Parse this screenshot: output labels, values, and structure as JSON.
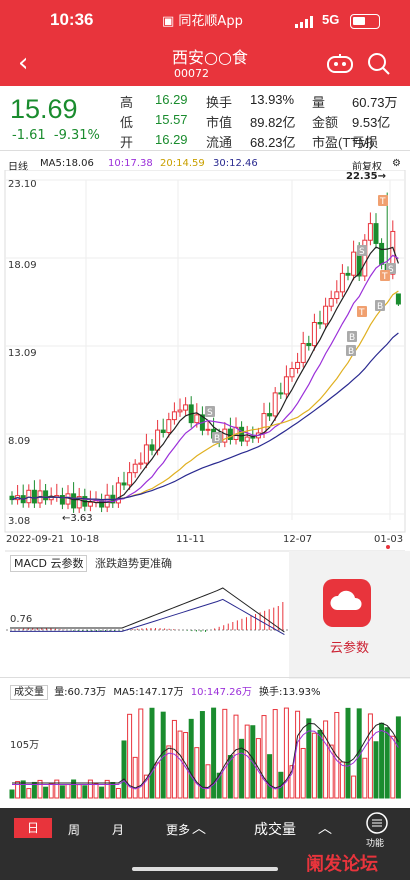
{
  "status_bar": {
    "time": "10:36",
    "app": "同花顺App",
    "network": "5G"
  },
  "header": {
    "stock_name": "西安○○食",
    "stock_code": "00072"
  },
  "quote": {
    "price": "15.69",
    "change": "-1.61",
    "change_pct": "-9.31%",
    "rows": [
      [
        {
          "l": "高",
          "v": "16.29",
          "c": "g"
        },
        {
          "l": "换手",
          "v": "13.93%",
          "c": "k"
        },
        {
          "l": "量",
          "v": "60.73万",
          "c": "k"
        }
      ],
      [
        {
          "l": "低",
          "v": "15.57",
          "c": "g"
        },
        {
          "l": "市值",
          "v": "89.82亿",
          "c": "k"
        },
        {
          "l": "金额",
          "v": "9.53亿",
          "c": "k"
        }
      ],
      [
        {
          "l": "开",
          "v": "16.29",
          "c": "g"
        },
        {
          "l": "流通",
          "v": "68.23亿",
          "c": "k"
        },
        {
          "l": "市盈(TTM)",
          "v": "亏损",
          "c": "k"
        }
      ]
    ]
  },
  "kline_bar": {
    "period": "日线",
    "ma5": "MA5:18.06",
    "ma10": "10:17.38",
    "ma20": "20:14.59",
    "ma30": "30:12.46",
    "adjust": "前复权"
  },
  "colors": {
    "up": "#e8343c",
    "down": "#1a8c2e",
    "ma5": "#222222",
    "ma10": "#9b30d9",
    "ma20": "#e0b020",
    "ma30": "#2a2a90"
  },
  "chart": {
    "y_labels": [
      "23.10",
      "18.09",
      "13.09",
      "8.09",
      "3.08"
    ],
    "x_labels": [
      "2022-09-21",
      "10-18",
      "11-11",
      "12-07",
      "01-03"
    ],
    "max_marker": "22.35→",
    "min_marker": "←3.63",
    "badges": [
      "S",
      "S",
      "B",
      "B",
      "S",
      "T",
      "T",
      "B",
      "B",
      "T"
    ]
  },
  "macd": {
    "label": "MACD 云参数",
    "hint": "涨跌趋势更准确",
    "level": "0.76"
  },
  "cloud": {
    "label": "云参数"
  },
  "volume": {
    "label": "成交量",
    "vol": "量:60.73万",
    "ma5": "MA5:147.17万",
    "ma10": "10:147.26万",
    "turnover": "换手:13.93%",
    "level": "105万"
  },
  "bottom": {
    "tabs": [
      "日",
      "周",
      "月",
      "更多"
    ],
    "indicator": "成交量",
    "func": "功能"
  },
  "watermark": "阑发论坛"
}
